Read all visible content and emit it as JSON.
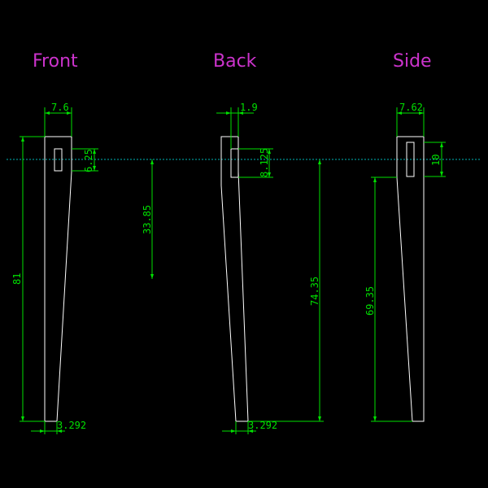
{
  "colors": {
    "background": "#000000",
    "title": "#cc33cc",
    "part_outline": "#ffffff",
    "dimension": "#00e000",
    "centerline": "#00b4b4"
  },
  "views": {
    "front": {
      "title": "Front",
      "dims": {
        "top_width": "7.6",
        "slot_height": "6.25",
        "height": "81",
        "to_mark": "33.85",
        "bottom_width": "3.292"
      }
    },
    "back": {
      "title": "Back",
      "dims": {
        "slot_width": "1.9",
        "slot_height": "8.125",
        "height": "74.35",
        "bottom_width": "3.292"
      }
    },
    "side": {
      "title": "Side",
      "dims": {
        "top_width": "7.62",
        "slot_height": "10",
        "height": "69.35"
      }
    }
  }
}
